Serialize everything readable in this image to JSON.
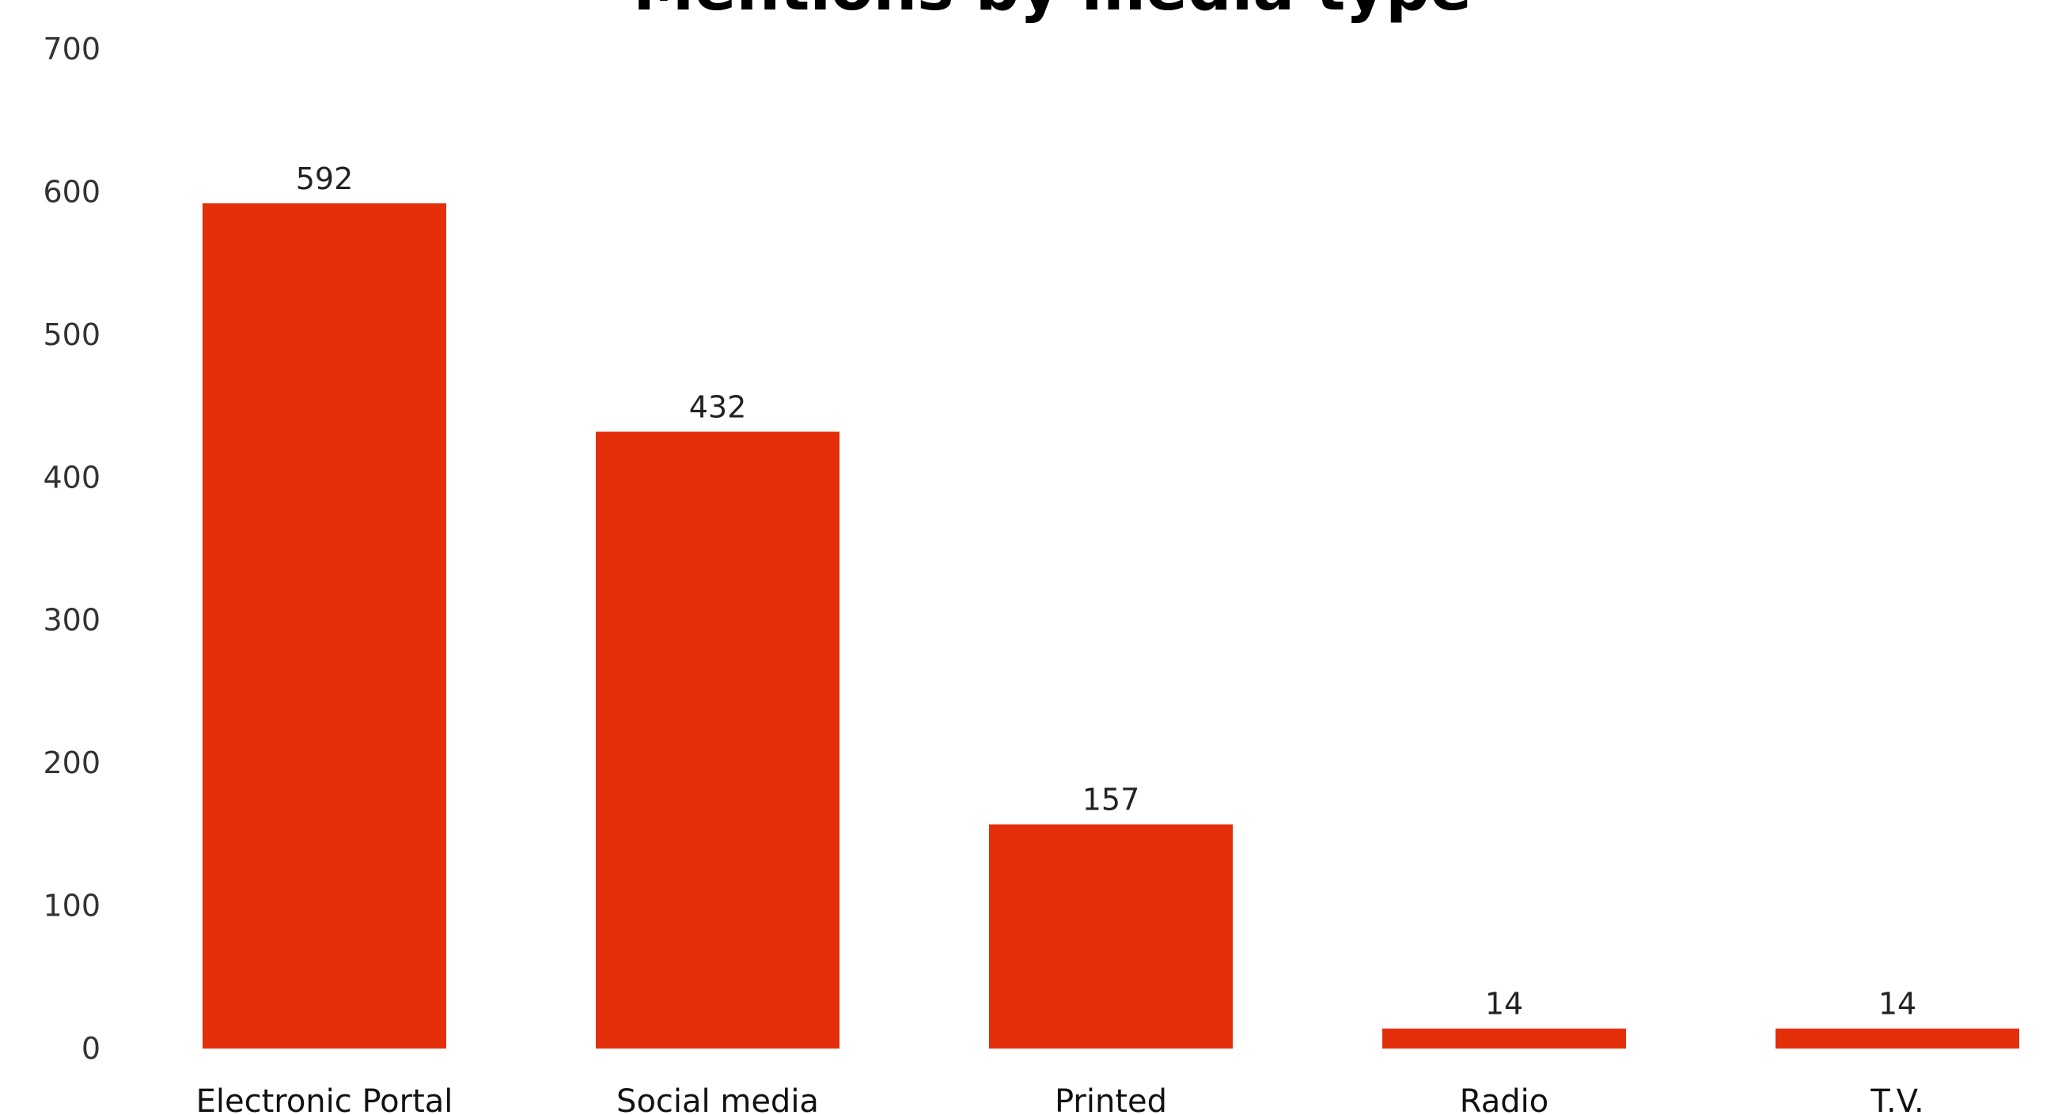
{
  "chart_data": {
    "type": "bar",
    "title": "Mentions by media type",
    "categories": [
      "Electronic Portal",
      "Social media",
      "Printed",
      "Radio",
      "T.V."
    ],
    "values": [
      592,
      432,
      157,
      14,
      14
    ],
    "data_labels": [
      "592",
      "432",
      "157",
      "14",
      "14"
    ],
    "xlabel": "",
    "ylabel": "",
    "ylim": [
      0,
      700
    ],
    "yticks": [
      0,
      100,
      200,
      300,
      400,
      500,
      600,
      700
    ],
    "grid": false,
    "legend": "none",
    "bar_color": "#e32f0a"
  }
}
